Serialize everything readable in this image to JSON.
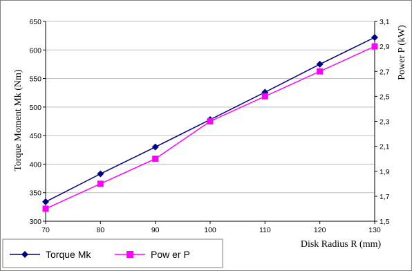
{
  "chart_data": {
    "type": "line",
    "title": "",
    "xlabel": "Disk Radius R (mm)",
    "ylabel_left": "Torque Moment Mk (Nm)",
    "ylabel_right": "Power P (kW)",
    "x": [
      70,
      80,
      90,
      100,
      110,
      120,
      130
    ],
    "xlim": [
      70,
      130
    ],
    "x_ticks": [
      "70",
      "80",
      "90",
      "100",
      "110",
      "120",
      "130"
    ],
    "ylim_left": [
      300,
      650
    ],
    "y_ticks_left": [
      "300",
      "350",
      "400",
      "450",
      "500",
      "550",
      "600",
      "650"
    ],
    "ylim_right": [
      1.5,
      3.1
    ],
    "y_ticks_right": [
      "1,5",
      "1,7",
      "1,9",
      "2,1",
      "2,3",
      "2,5",
      "2,7",
      "2,9",
      "3,1"
    ],
    "grid": "horizontal",
    "legend_position": "bottom-left",
    "series": [
      {
        "name": "Torque Mk",
        "axis": "left",
        "color": "#000080",
        "marker": "diamond",
        "values": [
          334,
          383,
          430,
          478,
          526,
          575,
          622
        ]
      },
      {
        "name": "Pow er P",
        "axis": "right",
        "color": "#ff00ff",
        "marker": "square",
        "values": [
          1.6,
          1.8,
          2.0,
          2.3,
          2.5,
          2.7,
          2.9
        ]
      }
    ]
  }
}
